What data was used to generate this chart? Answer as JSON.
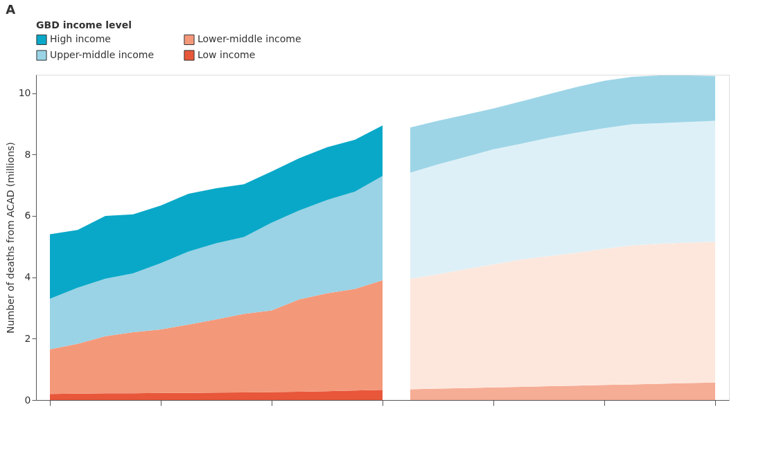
{
  "chart_data": {
    "type": "area",
    "title": "A",
    "ylabel": "Number of deaths from ACAD (millions)",
    "legend_title": "GBD income level",
    "legend": "top left",
    "stacked": true,
    "grid": false,
    "tick_labels": "y",
    "categories": [
      null,
      null,
      null,
      null,
      null,
      null,
      null,
      null,
      null,
      null,
      null,
      null,
      null,
      null,
      null,
      null,
      null,
      null,
      null,
      null,
      null,
      null,
      null,
      null,
      null
    ],
    "ylim": [
      0,
      10.6
    ],
    "yticks": [
      0,
      2,
      4,
      6,
      8,
      10
    ],
    "series": [
      {
        "name": "Low income",
        "color": "#e8573a",
        "values": [
          0.2,
          0.21,
          0.22,
          0.22,
          0.23,
          0.23,
          0.24,
          0.25,
          0.26,
          0.27,
          0.29,
          0.31,
          0.33,
          null,
          null,
          null,
          null,
          null,
          null,
          null,
          null,
          null,
          null,
          null,
          null
        ]
      },
      {
        "name": "Lower-middle income",
        "color": "#f4987a",
        "values": [
          1.45,
          1.62,
          1.86,
          1.99,
          2.07,
          2.23,
          2.39,
          2.56,
          2.66,
          3.01,
          3.19,
          3.31,
          3.57,
          null,
          null,
          null,
          null,
          null,
          null,
          null,
          null,
          null,
          null,
          null,
          null
        ]
      },
      {
        "name": "Upper-middle income",
        "color": "#99d3e5",
        "values": [
          1.65,
          1.83,
          1.87,
          1.92,
          2.16,
          2.38,
          2.48,
          2.5,
          2.86,
          2.9,
          3.04,
          3.17,
          3.4,
          null,
          null,
          null,
          null,
          null,
          null,
          null,
          null,
          null,
          null,
          null,
          null
        ]
      },
      {
        "name": "High income",
        "color": "#0aa8c8",
        "values": [
          2.1,
          1.88,
          2.05,
          1.92,
          1.88,
          1.88,
          1.79,
          1.72,
          1.67,
          1.7,
          1.72,
          1.69,
          1.65,
          null,
          null,
          null,
          null,
          null,
          null,
          null,
          null,
          null,
          null,
          null,
          null
        ]
      },
      {
        "color": "#f6ad95",
        "values": [
          null,
          null,
          null,
          null,
          null,
          null,
          null,
          null,
          null,
          null,
          null,
          null,
          null,
          0.35,
          0.37,
          0.39,
          0.41,
          0.43,
          0.45,
          0.47,
          0.49,
          0.51,
          0.53,
          0.55,
          0.57
        ]
      },
      {
        "color": "#fde7dd",
        "values": [
          null,
          null,
          null,
          null,
          null,
          null,
          null,
          null,
          null,
          null,
          null,
          null,
          null,
          3.6,
          3.73,
          3.87,
          4.01,
          4.15,
          4.24,
          4.33,
          4.44,
          4.53,
          4.56,
          4.58,
          4.59
        ]
      },
      {
        "color": "#def0f7",
        "values": [
          null,
          null,
          null,
          null,
          null,
          null,
          null,
          null,
          null,
          null,
          null,
          null,
          null,
          3.46,
          3.58,
          3.66,
          3.75,
          3.77,
          3.86,
          3.91,
          3.93,
          3.95,
          3.93,
          3.93,
          3.94
        ]
      },
      {
        "color": "#9dd5e7",
        "values": [
          null,
          null,
          null,
          null,
          null,
          null,
          null,
          null,
          null,
          null,
          null,
          null,
          null,
          1.47,
          1.42,
          1.38,
          1.33,
          1.38,
          1.42,
          1.49,
          1.54,
          1.54,
          1.56,
          1.52,
          1.46
        ]
      }
    ]
  }
}
